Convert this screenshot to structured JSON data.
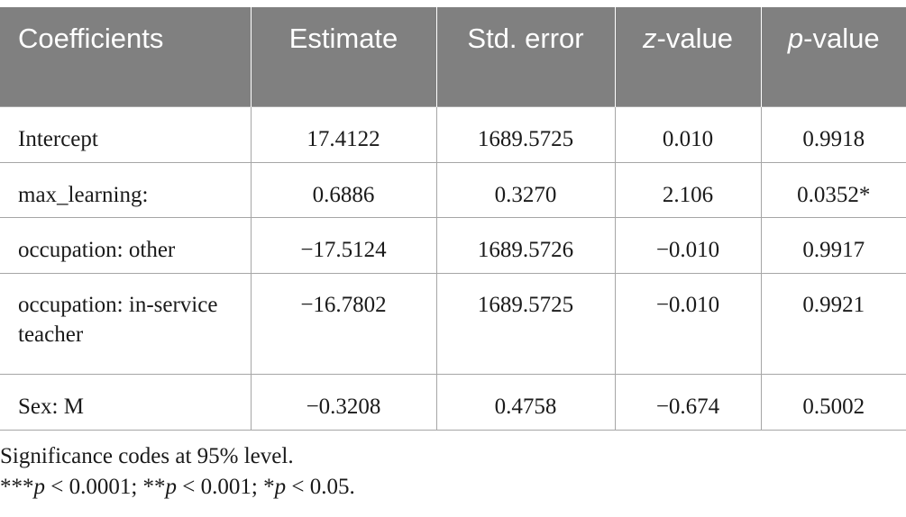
{
  "table": {
    "headers": [
      {
        "pre": "Coefficients",
        "it": "",
        "post": ""
      },
      {
        "pre": "Estimate",
        "it": "",
        "post": ""
      },
      {
        "pre": "Std. error",
        "it": "",
        "post": ""
      },
      {
        "pre": "",
        "it": "z",
        "post": "-value"
      },
      {
        "pre": "",
        "it": "p",
        "post": "-value"
      }
    ],
    "rows": [
      [
        "Intercept",
        "17.4122",
        "1689.5725",
        "0.010",
        "0.9918"
      ],
      [
        "max_learning:",
        "0.6886",
        "0.3270",
        "2.106",
        "0.0352*"
      ],
      [
        "occupation: other",
        "−17.5124",
        "1689.5726",
        "−0.010",
        "0.9917"
      ],
      [
        "occupation: in-service teacher",
        "−16.7802",
        "1689.5725",
        "−0.010",
        "0.9921"
      ],
      [
        "Sex: M",
        "−0.3208",
        "0.4758",
        "−0.674",
        "0.5002"
      ]
    ]
  },
  "notes": {
    "line1": "Significance codes at 95% level.",
    "line2": {
      "s1": "***",
      "p1": "p",
      "t1": " < 0.0001; ",
      "s2": "**",
      "p2": "p",
      "t2": " < 0.001; ",
      "s3": "*",
      "p3": "p",
      "t3": " < 0.05."
    }
  }
}
